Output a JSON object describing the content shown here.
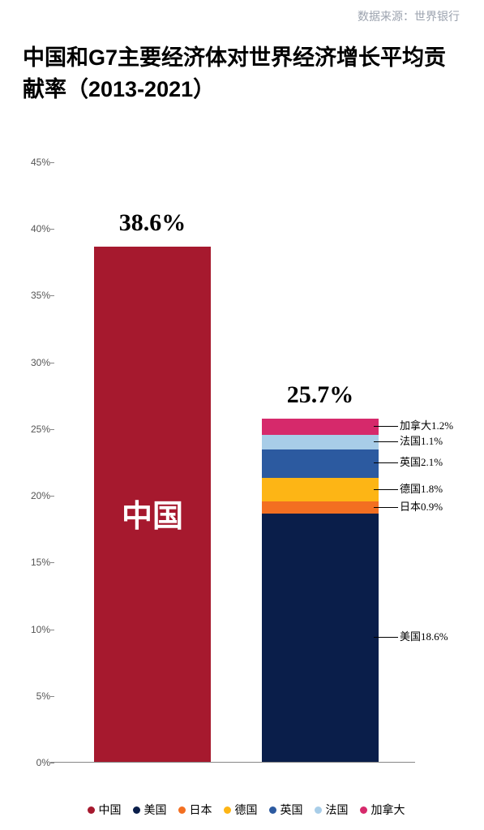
{
  "source_label": "数据来源：世界银行",
  "title": "中国和G7主要经济体对世界经济增长平均贡献率（2013-2021）",
  "chart": {
    "type": "bar-stacked",
    "ylim": [
      0,
      45
    ],
    "ytick_step": 5,
    "ytick_suffix": "%",
    "background_color": "#ffffff",
    "axis_color": "#888888",
    "tick_font_color": "#555555",
    "bars": [
      {
        "id": "china",
        "x_center_pct": 28,
        "width_pct": 32,
        "total_value": 38.6,
        "total_label": "38.6%",
        "inner_label": "中国",
        "segments": [
          {
            "name": "中国",
            "value": 38.6,
            "color": "#a6192e"
          }
        ]
      },
      {
        "id": "g7",
        "x_center_pct": 74,
        "width_pct": 32,
        "total_value": 25.7,
        "total_label": "25.7%",
        "segments": [
          {
            "name": "美国",
            "value": 18.6,
            "color": "#0a1e4a",
            "label": "美国18.6%"
          },
          {
            "name": "日本",
            "value": 0.9,
            "color": "#f36f21",
            "label": "日本0.9%"
          },
          {
            "name": "德国",
            "value": 1.8,
            "color": "#fdb515",
            "label": "德国1.8%"
          },
          {
            "name": "英国",
            "value": 2.1,
            "color": "#2c5aa0",
            "label": "英国2.1%"
          },
          {
            "name": "法国",
            "value": 1.1,
            "color": "#a8cde8",
            "label": "法国1.1%"
          },
          {
            "name": "加拿大",
            "value": 1.2,
            "color": "#d6296b",
            "label": "加拿大1.2%"
          }
        ]
      }
    ]
  },
  "legend": [
    {
      "label": "中国",
      "color": "#a6192e"
    },
    {
      "label": "美国",
      "color": "#0a1e4a"
    },
    {
      "label": "日本",
      "color": "#f36f21"
    },
    {
      "label": "德国",
      "color": "#fdb515"
    },
    {
      "label": "英国",
      "color": "#2c5aa0"
    },
    {
      "label": "法国",
      "color": "#a8cde8"
    },
    {
      "label": "加拿大",
      "color": "#d6296b"
    }
  ]
}
